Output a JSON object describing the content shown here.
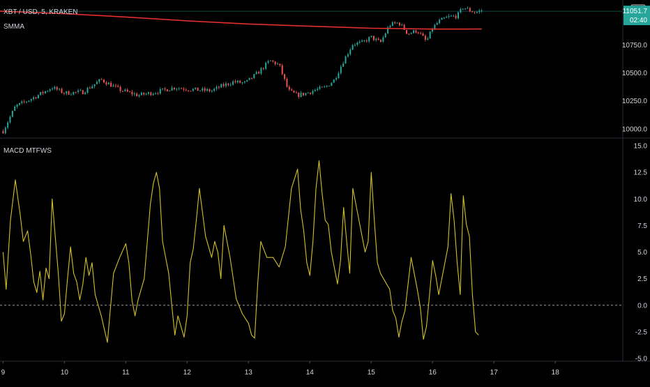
{
  "header": {
    "symbol_line": "XBT / USD, 5, KRAKEN",
    "overlay_name": "SMMA",
    "indicator_name": "MACD MTFWS",
    "currency_badge": "USD",
    "last_price_tag": "11051.7",
    "countdown_tag": "02:40"
  },
  "colors": {
    "background": "#000000",
    "up_candle": "#26a69a",
    "down_candle": "#ef5350",
    "smma_line": "#e03030",
    "macd_line": "#d4c12a",
    "zero_line": "#9598a1",
    "price_tag_bg": "#26a69a",
    "grid_separator": "#2a2e39"
  },
  "chart_data": [
    {
      "type": "candlestick",
      "title": "",
      "ylim": [
        9930,
        11090
      ],
      "y_ticks": [
        10000,
        10250,
        10500,
        10750
      ],
      "y_tick_labels": [
        "10000.0",
        "10250.0",
        "10500.0",
        "10750.0"
      ],
      "x_ticks": [
        "9",
        "10",
        "11",
        "12",
        "13",
        "14",
        "15",
        "16",
        "17",
        "18"
      ],
      "x_tick_values": [
        0,
        1,
        2,
        3,
        4,
        5,
        6,
        7,
        8,
        9
      ],
      "xlim": [
        -0.05,
        10.1
      ],
      "close_path": {
        "x": [
          0,
          0.2,
          0.5,
          0.8,
          1.0,
          1.3,
          1.6,
          1.9,
          2.2,
          2.5,
          2.8,
          3.1,
          3.4,
          3.55,
          3.75,
          3.95,
          4.15,
          4.35,
          4.5,
          4.65,
          4.8,
          4.95,
          5.1,
          5.25,
          5.4,
          5.55,
          5.7,
          5.85,
          6.0,
          6.15,
          6.3,
          6.45,
          6.6,
          6.75,
          6.9,
          7.0,
          7.1,
          7.25,
          7.4,
          7.5,
          7.6,
          7.7,
          7.8
        ],
        "y": [
          9980,
          10200,
          10280,
          10370,
          10320,
          10330,
          10440,
          10350,
          10300,
          10330,
          10370,
          10350,
          10340,
          10380,
          10420,
          10410,
          10500,
          10610,
          10570,
          10340,
          10300,
          10320,
          10350,
          10370,
          10440,
          10610,
          10760,
          10770,
          10820,
          10770,
          10930,
          10950,
          10850,
          10880,
          10780,
          10900,
          10960,
          11000,
          11010,
          11090,
          11060,
          11040,
          11060
        ]
      },
      "smma": {
        "x": [
          -0.05,
          1.0,
          2.0,
          3.0,
          4.0,
          5.0,
          6.0,
          7.0,
          7.5,
          7.8
        ],
        "y": [
          11052,
          11030,
          11000,
          10966,
          10938,
          10918,
          10900,
          10892,
          10892,
          10893
        ]
      },
      "last_price": 11051.7
    },
    {
      "type": "line",
      "title": "",
      "ylim": [
        -5,
        15.4
      ],
      "y_ticks": [
        -5,
        -2.5,
        0,
        2.5,
        5,
        7.5,
        10,
        12.5,
        15
      ],
      "y_tick_labels": [
        "-5.0",
        "-2.5",
        "0.0",
        "2.5",
        "5.0",
        "7.5",
        "10.0",
        "12.5",
        "15.0"
      ],
      "zero_line": 0,
      "series": [
        {
          "x": [
            0,
            0.05,
            0.12,
            0.2,
            0.28,
            0.33,
            0.4,
            0.45,
            0.5,
            0.55,
            0.6,
            0.65,
            0.7,
            0.75,
            0.8,
            0.85,
            0.9,
            0.95,
            1.0,
            1.05,
            1.1,
            1.15,
            1.2,
            1.25,
            1.3,
            1.35,
            1.4,
            1.45,
            1.5,
            1.6,
            1.7,
            1.8,
            1.9,
            2.0,
            2.05,
            2.1,
            2.15,
            2.2,
            2.3,
            2.4,
            2.45,
            2.5,
            2.55,
            2.6,
            2.7,
            2.75,
            2.8,
            2.85,
            2.9,
            2.95,
            3.0,
            3.05,
            3.1,
            3.15,
            3.2,
            3.3,
            3.4,
            3.45,
            3.5,
            3.55,
            3.6,
            3.7,
            3.8,
            3.9,
            4.0,
            4.05,
            4.1,
            4.15,
            4.2,
            4.3,
            4.4,
            4.5,
            4.6,
            4.7,
            4.8,
            4.85,
            4.9,
            4.95,
            5.0,
            5.05,
            5.1,
            5.15,
            5.2,
            5.25,
            5.3,
            5.35,
            5.45,
            5.5,
            5.55,
            5.6,
            5.65,
            5.7,
            5.8,
            5.9,
            5.95,
            6.0,
            6.05,
            6.1,
            6.15,
            6.2,
            6.3,
            6.35,
            6.4,
            6.45,
            6.5,
            6.55,
            6.6,
            6.65,
            6.7,
            6.75,
            6.8,
            6.85,
            6.9,
            6.95,
            7.0,
            7.05,
            7.1,
            7.15,
            7.2,
            7.25,
            7.3,
            7.35,
            7.4,
            7.45,
            7.5,
            7.55,
            7.6,
            7.65,
            7.7,
            7.75
          ],
          "y": [
            5,
            1.5,
            8,
            11.8,
            8.5,
            6,
            7,
            4.8,
            2.2,
            1.2,
            3.2,
            0.5,
            3.5,
            2.5,
            10,
            6.5,
            3,
            -1.5,
            -0.8,
            2.5,
            5.5,
            3,
            2.2,
            0.5,
            2,
            4.5,
            2.8,
            4,
            1,
            -1,
            -3.5,
            3,
            4.5,
            5.8,
            4,
            0.5,
            -1,
            0.5,
            2.5,
            9.5,
            11.5,
            12.5,
            11,
            6,
            3,
            0,
            -2.8,
            -1,
            -2,
            -3,
            -1,
            4,
            5.3,
            8,
            11,
            6.5,
            4.5,
            6,
            5,
            2.5,
            7.5,
            4.5,
            0.6,
            -0.8,
            -1.7,
            -2.8,
            -3.1,
            2,
            6,
            4.5,
            4.5,
            3.6,
            5.5,
            11,
            12.8,
            9,
            7,
            4,
            2.8,
            6,
            11,
            13.6,
            10.5,
            8,
            7.6,
            5,
            2,
            4.2,
            9.2,
            6,
            3,
            11,
            8,
            5,
            6,
            12.5,
            8,
            4,
            3,
            2.5,
            1.5,
            -0.5,
            -1.2,
            -3,
            -1.5,
            -0.5,
            2,
            4.5,
            3,
            1.5,
            -0.2,
            -3.2,
            -2,
            1,
            4.2,
            2.8,
            1,
            2.5,
            4,
            5.5,
            10.5,
            8,
            4,
            1,
            10.3,
            7.6,
            6.5,
            1,
            -2.5,
            -2.8
          ]
        }
      ]
    }
  ]
}
